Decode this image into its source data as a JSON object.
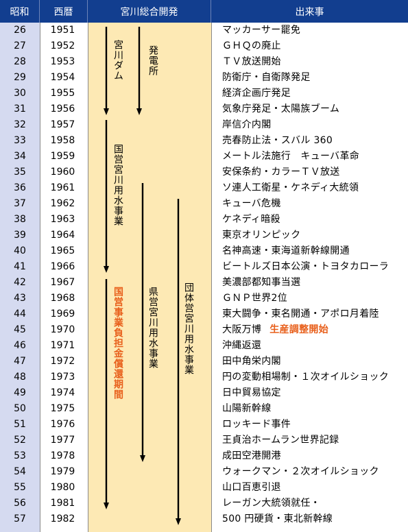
{
  "headers": [
    "昭和",
    "西暦",
    "宮川総合開発",
    "出来事"
  ],
  "rows": [
    {
      "showa": "26",
      "year": "1951",
      "event": "マッカーサー罷免"
    },
    {
      "showa": "27",
      "year": "1952",
      "event": "ＧＨＱの廃止"
    },
    {
      "showa": "28",
      "year": "1953",
      "event": "ＴＶ放送開始"
    },
    {
      "showa": "29",
      "year": "1954",
      "event": "防衛庁・自衛隊発足"
    },
    {
      "showa": "30",
      "year": "1955",
      "event": "経済企画庁発足"
    },
    {
      "showa": "31",
      "year": "1956",
      "event": "気象庁発足・太陽族ブーム"
    },
    {
      "showa": "32",
      "year": "1957",
      "event": "岸信介内閣"
    },
    {
      "showa": "33",
      "year": "1958",
      "event": "売春防止法・スバル 360"
    },
    {
      "showa": "34",
      "year": "1959",
      "event": "メートル法施行　キューバ革命"
    },
    {
      "showa": "35",
      "year": "1960",
      "event": "安保条約・カラーＴＶ放送"
    },
    {
      "showa": "36",
      "year": "1961",
      "event": "ソ連人工衛星・ケネディ大統領"
    },
    {
      "showa": "37",
      "year": "1962",
      "event": "キューバ危機"
    },
    {
      "showa": "38",
      "year": "1963",
      "event": "ケネディ暗殺"
    },
    {
      "showa": "39",
      "year": "1964",
      "event": "東京オリンピック"
    },
    {
      "showa": "40",
      "year": "1965",
      "event": "名神高速・東海道新幹線開通"
    },
    {
      "showa": "41",
      "year": "1966",
      "event": "ビートルズ日本公演・トヨタカローラ"
    },
    {
      "showa": "42",
      "year": "1967",
      "event": "美濃部都知事当選"
    },
    {
      "showa": "43",
      "year": "1968",
      "event": "ＧＮＰ世界2位"
    },
    {
      "showa": "44",
      "year": "1969",
      "event": "東大闘争・東名開通・アポロ月着陸"
    },
    {
      "showa": "45",
      "year": "1970",
      "event": "大阪万博",
      "highlight": "生産調整開始"
    },
    {
      "showa": "46",
      "year": "1971",
      "event": "沖縄返還"
    },
    {
      "showa": "47",
      "year": "1972",
      "event": "田中角栄内閣"
    },
    {
      "showa": "48",
      "year": "1973",
      "event": "円の変動相場制・１次オイルショック"
    },
    {
      "showa": "49",
      "year": "1974",
      "event": "日中貿易協定"
    },
    {
      "showa": "50",
      "year": "1975",
      "event": "山陽新幹線"
    },
    {
      "showa": "51",
      "year": "1976",
      "event": "ロッキード事件"
    },
    {
      "showa": "52",
      "year": "1977",
      "event": "王貞治ホームラン世界記録"
    },
    {
      "showa": "53",
      "year": "1978",
      "event": "成田空港開港"
    },
    {
      "showa": "54",
      "year": "1979",
      "event": "ウォークマン・２次オイルショック"
    },
    {
      "showa": "55",
      "year": "1980",
      "event": "山口百恵引退"
    },
    {
      "showa": "56",
      "year": "1981",
      "event": "レーガン大統領就任・"
    },
    {
      "showa": "57",
      "year": "1982",
      "event": "500 円硬貨・東北新幹線"
    }
  ],
  "projects": [
    {
      "label": "宮川ダム",
      "start_year": 1951,
      "end_year": 1956
    },
    {
      "label": "発電所",
      "start_year": 1951,
      "end_year": 1956
    },
    {
      "label": "国営宮川用水事業",
      "start_year": 1957,
      "end_year": 1966
    },
    {
      "label": "県営宮川用水事業",
      "start_year": 1961,
      "end_year": 1978
    },
    {
      "label": "団体営宮川用水事業",
      "start_year": 1962,
      "end_year": 1982
    },
    {
      "label": "国営事業負担金償還期間",
      "start_year": 1967,
      "end_year": 1981,
      "highlight": true
    }
  ],
  "colors": {
    "header_bg": "#123e8f",
    "header_text": "#ffffff",
    "showa_col_bg": "#d5daf0",
    "dev_col_bg": "#fde9b4",
    "highlight": "#e8601c",
    "arrow": "#000000"
  }
}
